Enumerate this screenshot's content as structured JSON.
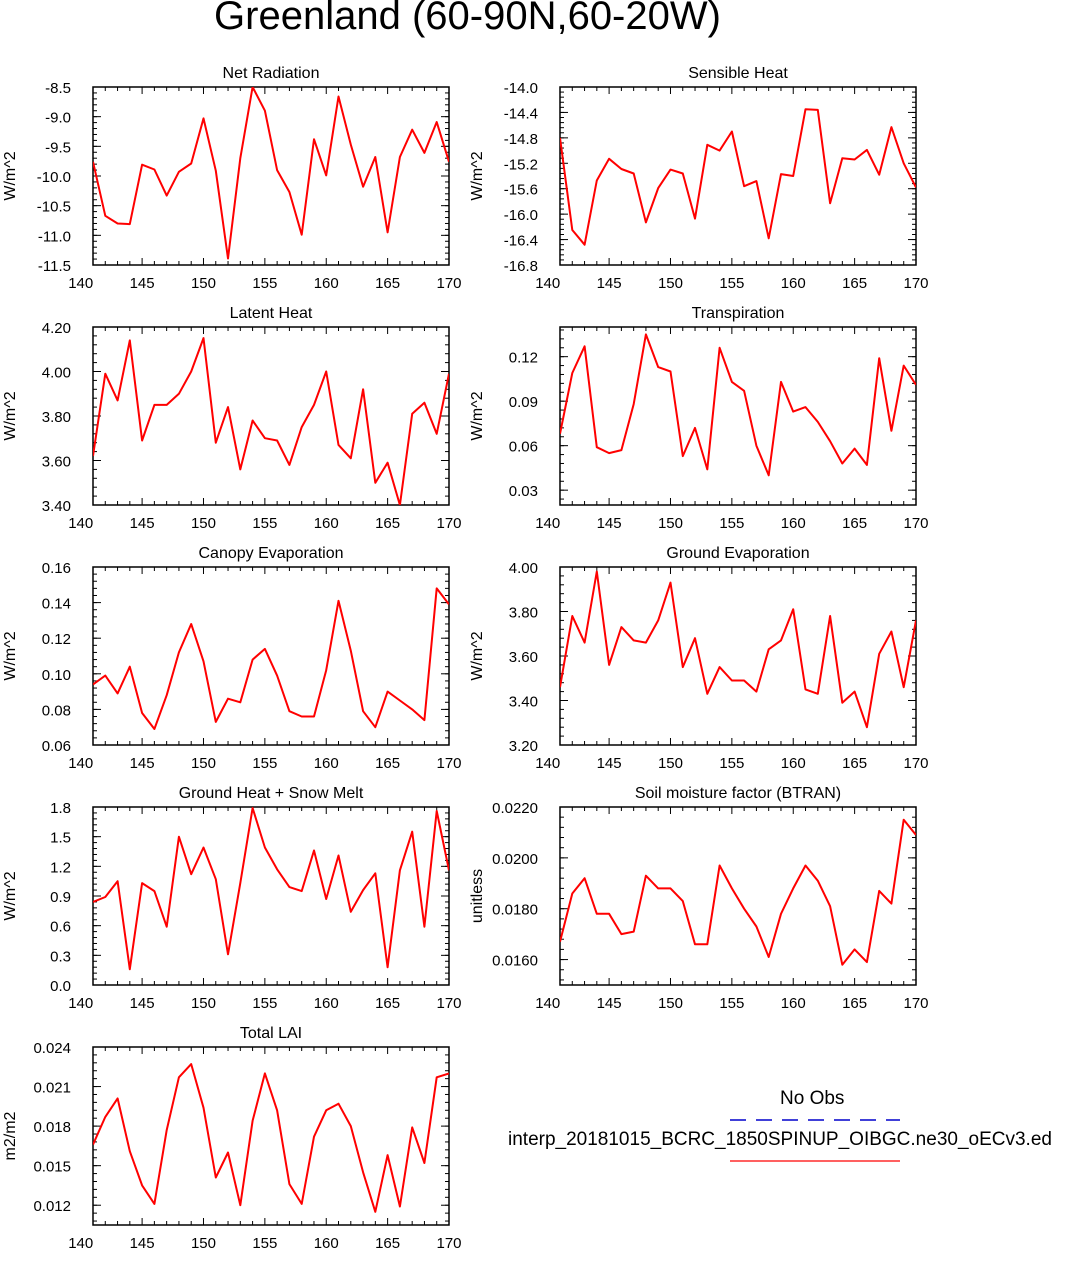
{
  "title": "Greenland (60-90N,60-20W)",
  "legend": {
    "obs_label": "No Obs",
    "case_label": "interp_20181015_BCRC_1850SPINUP_OIBGC.ne30_oECv3.ed",
    "obs_color": "#0000cc",
    "case_color": "#ff0000"
  },
  "line_color": "#ff0000",
  "chart_data": [
    {
      "type": "line",
      "title": "Net Radiation",
      "ylabel": "W/m^2",
      "xlim": [
        141,
        170
      ],
      "ylim": [
        -11.5,
        -8.5
      ],
      "xticks": [
        140,
        145,
        150,
        155,
        160,
        165,
        170
      ],
      "yticks": [
        -11.5,
        -11.0,
        -10.5,
        -10.0,
        -9.5,
        -9.0,
        -8.5
      ],
      "ytick_labels": [
        "-11.5",
        "-11.0",
        "-10.5",
        "-10.0",
        "-9.5",
        "-9.0",
        "-8.5"
      ],
      "x": [
        141,
        142,
        143,
        144,
        145,
        146,
        147,
        148,
        149,
        150,
        151,
        152,
        153,
        154,
        155,
        156,
        157,
        158,
        159,
        160,
        161,
        162,
        163,
        164,
        165,
        166,
        167,
        168,
        169,
        170
      ],
      "values": [
        -9.76,
        -10.67,
        -10.8,
        -10.81,
        -9.81,
        -9.89,
        -10.33,
        -9.93,
        -9.79,
        -9.03,
        -9.91,
        -11.39,
        -9.7,
        -8.5,
        -8.9,
        -9.9,
        -10.27,
        -10.99,
        -9.38,
        -9.99,
        -8.66,
        -9.47,
        -10.18,
        -9.68,
        -10.95,
        -9.68,
        -9.22,
        -9.61,
        -9.09,
        -9.76
      ]
    },
    {
      "type": "line",
      "title": "Sensible Heat",
      "ylabel": "W/m^2",
      "xlim": [
        141,
        170
      ],
      "ylim": [
        -16.8,
        -14.0
      ],
      "xticks": [
        140,
        145,
        150,
        155,
        160,
        165,
        170
      ],
      "yticks": [
        -16.8,
        -16.4,
        -16.0,
        -15.6,
        -15.2,
        -14.8,
        -14.4,
        -14.0
      ],
      "ytick_labels": [
        "-16.8",
        "-16.4",
        "-16.0",
        "-15.6",
        "-15.2",
        "-14.8",
        "-14.4",
        "-14.0"
      ],
      "x": [
        141,
        142,
        143,
        144,
        145,
        146,
        147,
        148,
        149,
        150,
        151,
        152,
        153,
        154,
        155,
        156,
        157,
        158,
        159,
        160,
        161,
        162,
        163,
        164,
        165,
        166,
        167,
        168,
        169,
        170
      ],
      "values": [
        -14.8,
        -16.25,
        -16.48,
        -15.47,
        -15.13,
        -15.29,
        -15.36,
        -16.13,
        -15.59,
        -15.3,
        -15.36,
        -16.07,
        -14.91,
        -15.0,
        -14.7,
        -15.56,
        -15.48,
        -16.38,
        -15.37,
        -15.4,
        -14.35,
        -14.36,
        -15.83,
        -15.12,
        -15.14,
        -14.99,
        -15.38,
        -14.63,
        -15.2,
        -15.58
      ]
    },
    {
      "type": "line",
      "title": "Latent Heat",
      "ylabel": "W/m^2",
      "xlim": [
        141,
        170
      ],
      "ylim": [
        3.4,
        4.2
      ],
      "xticks": [
        140,
        145,
        150,
        155,
        160,
        165,
        170
      ],
      "yticks": [
        3.4,
        3.6,
        3.8,
        4.0,
        4.2
      ],
      "ytick_labels": [
        "3.40",
        "3.60",
        "3.80",
        "4.00",
        "4.20"
      ],
      "x": [
        141,
        142,
        143,
        144,
        145,
        146,
        147,
        148,
        149,
        150,
        151,
        152,
        153,
        154,
        155,
        156,
        157,
        158,
        159,
        160,
        161,
        162,
        163,
        164,
        165,
        166,
        167,
        168,
        169,
        170
      ],
      "values": [
        3.62,
        3.99,
        3.87,
        4.14,
        3.69,
        3.85,
        3.85,
        3.9,
        4.0,
        4.15,
        3.68,
        3.84,
        3.56,
        3.78,
        3.7,
        3.69,
        3.58,
        3.75,
        3.85,
        4.0,
        3.67,
        3.61,
        3.92,
        3.5,
        3.59,
        3.4,
        3.81,
        3.86,
        3.72,
        3.99
      ]
    },
    {
      "type": "line",
      "title": "Transpiration",
      "ylabel": "W/m^2",
      "xlim": [
        141,
        170
      ],
      "ylim": [
        0.02,
        0.14
      ],
      "xticks": [
        140,
        145,
        150,
        155,
        160,
        165,
        170
      ],
      "yticks": [
        0.03,
        0.06,
        0.09,
        0.12
      ],
      "ytick_labels": [
        "0.03",
        "0.06",
        "0.09",
        "0.12"
      ],
      "x": [
        141,
        142,
        143,
        144,
        145,
        146,
        147,
        148,
        149,
        150,
        151,
        152,
        153,
        154,
        155,
        156,
        157,
        158,
        159,
        160,
        161,
        162,
        163,
        164,
        165,
        166,
        167,
        168,
        169,
        170
      ],
      "values": [
        0.068,
        0.109,
        0.127,
        0.059,
        0.055,
        0.057,
        0.088,
        0.135,
        0.113,
        0.11,
        0.053,
        0.072,
        0.044,
        0.126,
        0.103,
        0.097,
        0.06,
        0.04,
        0.103,
        0.083,
        0.086,
        0.076,
        0.063,
        0.048,
        0.058,
        0.047,
        0.119,
        0.07,
        0.114,
        0.101
      ]
    },
    {
      "type": "line",
      "title": "Canopy Evaporation",
      "ylabel": "W/m^2",
      "xlim": [
        141,
        170
      ],
      "ylim": [
        0.06,
        0.16
      ],
      "xticks": [
        140,
        145,
        150,
        155,
        160,
        165,
        170
      ],
      "yticks": [
        0.06,
        0.08,
        0.1,
        0.12,
        0.14,
        0.16
      ],
      "ytick_labels": [
        "0.06",
        "0.08",
        "0.10",
        "0.12",
        "0.14",
        "0.16"
      ],
      "x": [
        141,
        142,
        143,
        144,
        145,
        146,
        147,
        148,
        149,
        150,
        151,
        152,
        153,
        154,
        155,
        156,
        157,
        158,
        159,
        160,
        161,
        162,
        163,
        164,
        165,
        166,
        167,
        168,
        169,
        170
      ],
      "values": [
        0.094,
        0.099,
        0.089,
        0.104,
        0.078,
        0.069,
        0.088,
        0.112,
        0.128,
        0.107,
        0.073,
        0.086,
        0.084,
        0.108,
        0.114,
        0.099,
        0.079,
        0.076,
        0.076,
        0.102,
        0.141,
        0.113,
        0.079,
        0.07,
        0.09,
        0.085,
        0.08,
        0.074,
        0.148,
        0.139
      ]
    },
    {
      "type": "line",
      "title": "Ground Evaporation",
      "ylabel": "W/m^2",
      "xlim": [
        141,
        170
      ],
      "ylim": [
        3.2,
        4.0
      ],
      "xticks": [
        140,
        145,
        150,
        155,
        160,
        165,
        170
      ],
      "yticks": [
        3.2,
        3.4,
        3.6,
        3.8,
        4.0
      ],
      "ytick_labels": [
        "3.20",
        "3.40",
        "3.60",
        "3.80",
        "4.00"
      ],
      "x": [
        141,
        142,
        143,
        144,
        145,
        146,
        147,
        148,
        149,
        150,
        151,
        152,
        153,
        154,
        155,
        156,
        157,
        158,
        159,
        160,
        161,
        162,
        163,
        164,
        165,
        166,
        167,
        168,
        169,
        170
      ],
      "values": [
        3.46,
        3.78,
        3.66,
        3.98,
        3.56,
        3.73,
        3.67,
        3.66,
        3.76,
        3.93,
        3.55,
        3.68,
        3.43,
        3.55,
        3.49,
        3.49,
        3.44,
        3.63,
        3.67,
        3.81,
        3.45,
        3.43,
        3.78,
        3.39,
        3.44,
        3.28,
        3.61,
        3.71,
        3.46,
        3.76
      ]
    },
    {
      "type": "line",
      "title": "Ground Heat + Snow Melt",
      "ylabel": "W/m^2",
      "xlim": [
        141,
        170
      ],
      "ylim": [
        0.0,
        1.8
      ],
      "xticks": [
        140,
        145,
        150,
        155,
        160,
        165,
        170
      ],
      "yticks": [
        0.0,
        0.3,
        0.6,
        0.9,
        1.2,
        1.5,
        1.8
      ],
      "ytick_labels": [
        "0.0",
        "0.3",
        "0.6",
        "0.9",
        "1.2",
        "1.5",
        "1.8"
      ],
      "x": [
        141,
        142,
        143,
        144,
        145,
        146,
        147,
        148,
        149,
        150,
        151,
        152,
        153,
        154,
        155,
        156,
        157,
        158,
        159,
        160,
        161,
        162,
        163,
        164,
        165,
        166,
        167,
        168,
        169,
        170
      ],
      "values": [
        0.84,
        0.89,
        1.05,
        0.16,
        1.03,
        0.95,
        0.59,
        1.5,
        1.12,
        1.39,
        1.07,
        0.31,
        1.03,
        1.79,
        1.39,
        1.17,
        0.99,
        0.95,
        1.36,
        0.87,
        1.31,
        0.74,
        0.96,
        1.13,
        0.18,
        1.16,
        1.55,
        0.59,
        1.76,
        1.16
      ]
    },
    {
      "type": "line",
      "title": "Soil moisture factor (BTRAN)",
      "ylabel": "unitless",
      "xlim": [
        141,
        170
      ],
      "ylim": [
        0.015,
        0.022
      ],
      "xticks": [
        140,
        145,
        150,
        155,
        160,
        165,
        170
      ],
      "yticks": [
        0.016,
        0.018,
        0.02,
        0.022
      ],
      "ytick_labels": [
        "0.0160",
        "0.0180",
        "0.0200",
        "0.0220"
      ],
      "x": [
        141,
        142,
        143,
        144,
        145,
        146,
        147,
        148,
        149,
        150,
        151,
        152,
        153,
        154,
        155,
        156,
        157,
        158,
        159,
        160,
        161,
        162,
        163,
        164,
        165,
        166,
        167,
        168,
        169,
        170
      ],
      "values": [
        0.0167,
        0.0186,
        0.0192,
        0.0178,
        0.0178,
        0.017,
        0.0171,
        0.0193,
        0.0188,
        0.0188,
        0.0183,
        0.0166,
        0.0166,
        0.0197,
        0.0188,
        0.018,
        0.0173,
        0.0161,
        0.0178,
        0.0188,
        0.0197,
        0.0191,
        0.0181,
        0.0158,
        0.0164,
        0.0159,
        0.0187,
        0.0182,
        0.0215,
        0.0209
      ]
    },
    {
      "type": "line",
      "title": "Total LAI",
      "ylabel": "m2/m2",
      "xlim": [
        141,
        170
      ],
      "ylim": [
        0.0105,
        0.024
      ],
      "xticks": [
        140,
        145,
        150,
        155,
        160,
        165,
        170
      ],
      "yticks": [
        0.012,
        0.015,
        0.018,
        0.021,
        0.024
      ],
      "ytick_labels": [
        "0.012",
        "0.015",
        "0.018",
        "0.021",
        "0.024"
      ],
      "x": [
        141,
        142,
        143,
        144,
        145,
        146,
        147,
        148,
        149,
        150,
        151,
        152,
        153,
        154,
        155,
        156,
        157,
        158,
        159,
        160,
        161,
        162,
        163,
        164,
        165,
        166,
        167,
        168,
        169,
        170
      ],
      "values": [
        0.0166,
        0.0187,
        0.0201,
        0.0161,
        0.0135,
        0.0121,
        0.0177,
        0.0217,
        0.0227,
        0.0194,
        0.0141,
        0.016,
        0.012,
        0.0184,
        0.022,
        0.0192,
        0.0136,
        0.0121,
        0.0172,
        0.0192,
        0.0197,
        0.018,
        0.0145,
        0.0115,
        0.0158,
        0.0119,
        0.0179,
        0.0152,
        0.0217,
        0.022
      ]
    }
  ]
}
